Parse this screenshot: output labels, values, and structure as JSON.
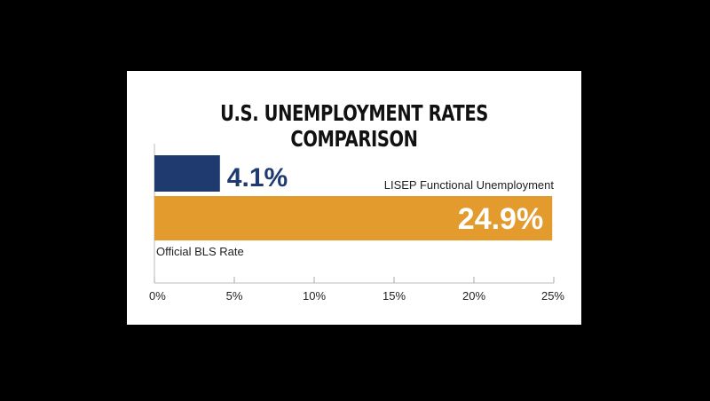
{
  "chart_data": {
    "type": "bar",
    "orientation": "horizontal",
    "title": "U.S. UNEMPLOYMENT RATES COMPARISON",
    "categories": [
      "Official BLS Rate",
      "LISEP Functional Unemployment"
    ],
    "values": [
      4.1,
      24.9
    ],
    "value_labels": [
      "4.1%",
      "24.9%"
    ],
    "colors": [
      "#1f3a6e",
      "#e39b2d"
    ],
    "xlim": [
      0,
      25
    ],
    "xticks": [
      0,
      5,
      10,
      15,
      20,
      25
    ],
    "xtick_labels": [
      "0%",
      "5%",
      "10%",
      "15%",
      "20%",
      "25%"
    ],
    "xlabel": "",
    "ylabel": "",
    "grid": false,
    "legend": "none",
    "background": "#ffffff",
    "page_background": "#000000"
  }
}
